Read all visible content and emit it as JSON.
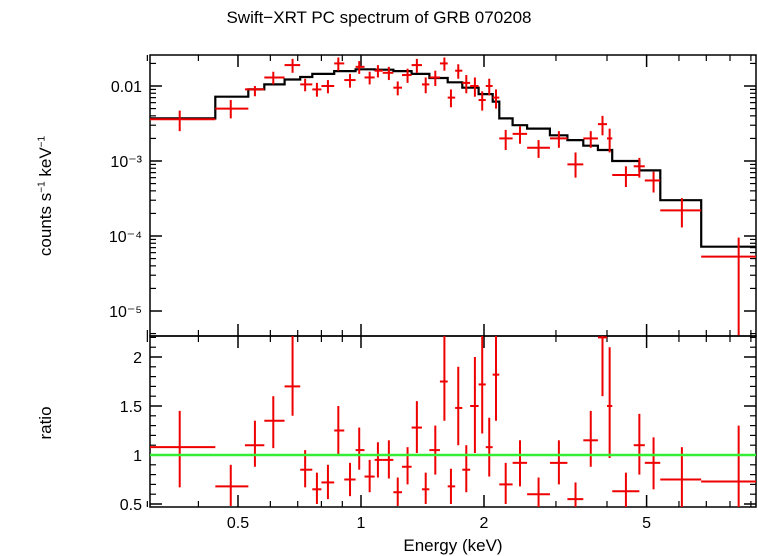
{
  "chart_data": [
    {
      "type": "step-errorbar",
      "panel": "spectrum",
      "title": "Swift−XRT PC spectrum of GRB 070208",
      "xlabel": "Energy (keV)",
      "ylabel": "counts s⁻¹ keV⁻¹",
      "xscale": "log",
      "yscale": "log",
      "xlim": [
        0.3,
        10
      ],
      "ylim": [
        5e-06,
        0.025
      ],
      "y_tick_labels": [
        "0.01",
        "10⁻³",
        "10⁻⁴",
        "10⁻⁵"
      ],
      "data_color": "#ee0000",
      "model_color": "#000000",
      "data": [
        {
          "x": 0.36,
          "xlo": 0.3,
          "xhi": 0.44,
          "y": 0.0036,
          "ylo": 0.0025,
          "yhi": 0.0047
        },
        {
          "x": 0.48,
          "xlo": 0.44,
          "xhi": 0.53,
          "y": 0.005,
          "ylo": 0.0037,
          "yhi": 0.0065
        },
        {
          "x": 0.55,
          "xlo": 0.52,
          "xhi": 0.58,
          "y": 0.009,
          "ylo": 0.0073,
          "yhi": 0.01
        },
        {
          "x": 0.61,
          "xlo": 0.58,
          "xhi": 0.65,
          "y": 0.013,
          "ylo": 0.0105,
          "yhi": 0.0155
        },
        {
          "x": 0.68,
          "xlo": 0.65,
          "xhi": 0.71,
          "y": 0.019,
          "ylo": 0.015,
          "yhi": 0.023
        },
        {
          "x": 0.73,
          "xlo": 0.71,
          "xhi": 0.76,
          "y": 0.0105,
          "ylo": 0.0085,
          "yhi": 0.0125
        },
        {
          "x": 0.78,
          "xlo": 0.76,
          "xhi": 0.8,
          "y": 0.009,
          "ylo": 0.0072,
          "yhi": 0.011
        },
        {
          "x": 0.83,
          "xlo": 0.8,
          "xhi": 0.86,
          "y": 0.01,
          "ylo": 0.008,
          "yhi": 0.012
        },
        {
          "x": 0.88,
          "xlo": 0.86,
          "xhi": 0.91,
          "y": 0.02,
          "ylo": 0.016,
          "yhi": 0.024
        },
        {
          "x": 0.94,
          "xlo": 0.91,
          "xhi": 0.97,
          "y": 0.012,
          "ylo": 0.0095,
          "yhi": 0.0145
        },
        {
          "x": 0.99,
          "xlo": 0.97,
          "xhi": 1.02,
          "y": 0.018,
          "ylo": 0.0145,
          "yhi": 0.0215
        },
        {
          "x": 1.05,
          "xlo": 1.02,
          "xhi": 1.08,
          "y": 0.013,
          "ylo": 0.0105,
          "yhi": 0.0155
        },
        {
          "x": 1.1,
          "xlo": 1.08,
          "xhi": 1.13,
          "y": 0.016,
          "ylo": 0.013,
          "yhi": 0.019
        },
        {
          "x": 1.17,
          "xlo": 1.13,
          "xhi": 1.2,
          "y": 0.015,
          "ylo": 0.012,
          "yhi": 0.018
        },
        {
          "x": 1.23,
          "xlo": 1.2,
          "xhi": 1.26,
          "y": 0.0095,
          "ylo": 0.0075,
          "yhi": 0.0115
        },
        {
          "x": 1.3,
          "xlo": 1.26,
          "xhi": 1.33,
          "y": 0.014,
          "ylo": 0.011,
          "yhi": 0.017
        },
        {
          "x": 1.37,
          "xlo": 1.33,
          "xhi": 1.41,
          "y": 0.019,
          "ylo": 0.015,
          "yhi": 0.023
        },
        {
          "x": 1.44,
          "xlo": 1.41,
          "xhi": 1.47,
          "y": 0.0105,
          "ylo": 0.008,
          "yhi": 0.013
        },
        {
          "x": 1.52,
          "xlo": 1.47,
          "xhi": 1.56,
          "y": 0.013,
          "ylo": 0.01,
          "yhi": 0.016
        },
        {
          "x": 1.6,
          "xlo": 1.56,
          "xhi": 1.63,
          "y": 0.02,
          "ylo": 0.016,
          "yhi": 0.024
        },
        {
          "x": 1.66,
          "xlo": 1.63,
          "xhi": 1.7,
          "y": 0.007,
          "ylo": 0.0052,
          "yhi": 0.009
        },
        {
          "x": 1.73,
          "xlo": 1.7,
          "xhi": 1.77,
          "y": 0.016,
          "ylo": 0.0125,
          "yhi": 0.0195
        },
        {
          "x": 1.81,
          "xlo": 1.77,
          "xhi": 1.85,
          "y": 0.011,
          "ylo": 0.008,
          "yhi": 0.014
        },
        {
          "x": 1.9,
          "xlo": 1.85,
          "xhi": 1.94,
          "y": 0.01,
          "ylo": 0.0072,
          "yhi": 0.013
        },
        {
          "x": 1.98,
          "xlo": 1.94,
          "xhi": 2.02,
          "y": 0.0065,
          "ylo": 0.0047,
          "yhi": 0.0085
        },
        {
          "x": 2.06,
          "xlo": 2.02,
          "xhi": 2.1,
          "y": 0.01,
          "ylo": 0.0075,
          "yhi": 0.0125
        },
        {
          "x": 2.14,
          "xlo": 2.1,
          "xhi": 2.18,
          "y": 0.007,
          "ylo": 0.005,
          "yhi": 0.009
        },
        {
          "x": 2.26,
          "xlo": 2.18,
          "xhi": 2.35,
          "y": 0.002,
          "ylo": 0.0014,
          "yhi": 0.0026
        },
        {
          "x": 2.45,
          "xlo": 2.35,
          "xhi": 2.55,
          "y": 0.0023,
          "ylo": 0.0017,
          "yhi": 0.0029
        },
        {
          "x": 2.72,
          "xlo": 2.55,
          "xhi": 2.9,
          "y": 0.0015,
          "ylo": 0.0011,
          "yhi": 0.0019
        },
        {
          "x": 3.05,
          "xlo": 2.9,
          "xhi": 3.2,
          "y": 0.002,
          "ylo": 0.0015,
          "yhi": 0.0025
        },
        {
          "x": 3.35,
          "xlo": 3.2,
          "xhi": 3.5,
          "y": 0.0009,
          "ylo": 0.0006,
          "yhi": 0.0013
        },
        {
          "x": 3.65,
          "xlo": 3.5,
          "xhi": 3.8,
          "y": 0.002,
          "ylo": 0.0015,
          "yhi": 0.0025
        },
        {
          "x": 3.9,
          "xlo": 3.8,
          "xhi": 4.0,
          "y": 0.0031,
          "ylo": 0.0022,
          "yhi": 0.004
        },
        {
          "x": 4.06,
          "xlo": 4.0,
          "xhi": 4.12,
          "y": 0.002,
          "ylo": 0.0013,
          "yhi": 0.0027
        },
        {
          "x": 4.45,
          "xlo": 4.12,
          "xhi": 4.8,
          "y": 0.00065,
          "ylo": 0.00045,
          "yhi": 0.00085
        },
        {
          "x": 4.8,
          "xlo": 4.65,
          "xhi": 4.95,
          "y": 0.00085,
          "ylo": 0.0006,
          "yhi": 0.0011
        },
        {
          "x": 5.2,
          "xlo": 4.95,
          "xhi": 5.4,
          "y": 0.00055,
          "ylo": 0.00038,
          "yhi": 0.00072
        },
        {
          "x": 6.1,
          "xlo": 5.4,
          "xhi": 6.8,
          "y": 0.00022,
          "ylo": 0.00013,
          "yhi": 0.00032
        },
        {
          "x": 8.4,
          "xlo": 6.8,
          "xhi": 10.0,
          "y": 5.3e-05,
          "ylo": 4e-06,
          "yhi": 9.5e-05
        }
      ],
      "model_steps": [
        {
          "xlo": 0.3,
          "xhi": 0.44,
          "y": 0.0037
        },
        {
          "xlo": 0.44,
          "xhi": 0.53,
          "y": 0.0072
        },
        {
          "xlo": 0.53,
          "xhi": 0.58,
          "y": 0.009
        },
        {
          "xlo": 0.58,
          "xhi": 0.65,
          "y": 0.0105
        },
        {
          "xlo": 0.65,
          "xhi": 0.71,
          "y": 0.0122
        },
        {
          "xlo": 0.71,
          "xhi": 0.76,
          "y": 0.0132
        },
        {
          "xlo": 0.76,
          "xhi": 0.86,
          "y": 0.0145
        },
        {
          "xlo": 0.86,
          "xhi": 0.97,
          "y": 0.0158
        },
        {
          "xlo": 0.97,
          "xhi": 1.08,
          "y": 0.0167
        },
        {
          "xlo": 1.08,
          "xhi": 1.2,
          "y": 0.0165
        },
        {
          "xlo": 1.2,
          "xhi": 1.33,
          "y": 0.0158
        },
        {
          "xlo": 1.33,
          "xhi": 1.47,
          "y": 0.0145
        },
        {
          "xlo": 1.47,
          "xhi": 1.63,
          "y": 0.0128
        },
        {
          "xlo": 1.63,
          "xhi": 1.77,
          "y": 0.0112
        },
        {
          "xlo": 1.77,
          "xhi": 1.94,
          "y": 0.0095
        },
        {
          "xlo": 1.94,
          "xhi": 2.1,
          "y": 0.0078
        },
        {
          "xlo": 2.1,
          "xhi": 2.18,
          "y": 0.0062
        },
        {
          "xlo": 2.18,
          "xhi": 2.35,
          "y": 0.0037
        },
        {
          "xlo": 2.35,
          "xhi": 2.55,
          "y": 0.003
        },
        {
          "xlo": 2.55,
          "xhi": 2.9,
          "y": 0.0027
        },
        {
          "xlo": 2.9,
          "xhi": 3.2,
          "y": 0.0022
        },
        {
          "xlo": 3.2,
          "xhi": 3.5,
          "y": 0.0019
        },
        {
          "xlo": 3.5,
          "xhi": 3.8,
          "y": 0.0016
        },
        {
          "xlo": 3.8,
          "xhi": 4.12,
          "y": 0.0014
        },
        {
          "xlo": 4.12,
          "xhi": 4.8,
          "y": 0.001
        },
        {
          "xlo": 4.8,
          "xhi": 5.4,
          "y": 0.00075
        },
        {
          "xlo": 5.4,
          "xhi": 6.8,
          "y": 0.0003
        },
        {
          "xlo": 6.8,
          "xhi": 10.0,
          "y": 7.2e-05
        }
      ]
    },
    {
      "type": "ratio-errorbar",
      "panel": "ratio",
      "xlabel": "Energy (keV)",
      "ylabel": "ratio",
      "xscale": "log",
      "xlim": [
        0.3,
        10
      ],
      "ylim": [
        0.5,
        2.25
      ],
      "x_tick_labels": [
        "0.5",
        "1",
        "2",
        "5"
      ],
      "y_tick_labels": [
        "0.5",
        "1",
        "1.5",
        "2"
      ],
      "reference_line": {
        "y": 1,
        "color": "#33ee33"
      },
      "data_color": "#ee0000",
      "data": [
        {
          "x": 0.36,
          "xlo": 0.3,
          "xhi": 0.44,
          "y": 1.08,
          "ylo": 0.67,
          "yhi": 1.45
        },
        {
          "x": 0.48,
          "xlo": 0.44,
          "xhi": 0.53,
          "y": 0.68,
          "ylo": 0.48,
          "yhi": 0.9
        },
        {
          "x": 0.55,
          "xlo": 0.52,
          "xhi": 0.58,
          "y": 1.1,
          "ylo": 0.88,
          "yhi": 1.35
        },
        {
          "x": 0.61,
          "xlo": 0.58,
          "xhi": 0.65,
          "y": 1.35,
          "ylo": 1.07,
          "yhi": 1.6
        },
        {
          "x": 0.68,
          "xlo": 0.65,
          "xhi": 0.71,
          "y": 1.7,
          "ylo": 1.4,
          "yhi": 2.22
        },
        {
          "x": 0.73,
          "xlo": 0.71,
          "xhi": 0.76,
          "y": 0.85,
          "ylo": 0.67,
          "yhi": 1.05
        },
        {
          "x": 0.78,
          "xlo": 0.76,
          "xhi": 0.8,
          "y": 0.65,
          "ylo": 0.5,
          "yhi": 0.82
        },
        {
          "x": 0.83,
          "xlo": 0.8,
          "xhi": 0.86,
          "y": 0.72,
          "ylo": 0.55,
          "yhi": 0.9
        },
        {
          "x": 0.88,
          "xlo": 0.86,
          "xhi": 0.91,
          "y": 1.25,
          "ylo": 1.0,
          "yhi": 1.5
        },
        {
          "x": 0.94,
          "xlo": 0.91,
          "xhi": 0.97,
          "y": 0.75,
          "ylo": 0.58,
          "yhi": 0.92
        },
        {
          "x": 0.99,
          "xlo": 0.97,
          "xhi": 1.02,
          "y": 1.05,
          "ylo": 0.85,
          "yhi": 1.28
        },
        {
          "x": 1.05,
          "xlo": 1.02,
          "xhi": 1.08,
          "y": 0.78,
          "ylo": 0.62,
          "yhi": 0.95
        },
        {
          "x": 1.1,
          "xlo": 1.08,
          "xhi": 1.13,
          "y": 0.95,
          "ylo": 0.77,
          "yhi": 1.13
        },
        {
          "x": 1.17,
          "xlo": 1.13,
          "xhi": 1.2,
          "y": 0.95,
          "ylo": 0.76,
          "yhi": 1.15
        },
        {
          "x": 1.23,
          "xlo": 1.2,
          "xhi": 1.26,
          "y": 0.62,
          "ylo": 0.48,
          "yhi": 0.77
        },
        {
          "x": 1.3,
          "xlo": 1.26,
          "xhi": 1.33,
          "y": 0.88,
          "ylo": 0.7,
          "yhi": 1.08
        },
        {
          "x": 1.37,
          "xlo": 1.33,
          "xhi": 1.41,
          "y": 1.28,
          "ylo": 1.02,
          "yhi": 1.55
        },
        {
          "x": 1.44,
          "xlo": 1.41,
          "xhi": 1.47,
          "y": 0.65,
          "ylo": 0.5,
          "yhi": 0.82
        },
        {
          "x": 1.52,
          "xlo": 1.47,
          "xhi": 1.56,
          "y": 1.05,
          "ylo": 0.8,
          "yhi": 1.3
        },
        {
          "x": 1.6,
          "xlo": 1.56,
          "xhi": 1.63,
          "y": 1.75,
          "ylo": 1.35,
          "yhi": 2.25
        },
        {
          "x": 1.66,
          "xlo": 1.63,
          "xhi": 1.7,
          "y": 0.68,
          "ylo": 0.5,
          "yhi": 0.86
        },
        {
          "x": 1.73,
          "xlo": 1.7,
          "xhi": 1.77,
          "y": 1.48,
          "ylo": 1.1,
          "yhi": 1.9
        },
        {
          "x": 1.81,
          "xlo": 1.77,
          "xhi": 1.85,
          "y": 0.85,
          "ylo": 0.62,
          "yhi": 1.1
        },
        {
          "x": 1.9,
          "xlo": 1.85,
          "xhi": 1.94,
          "y": 1.5,
          "ylo": 1.02,
          "yhi": 2.0
        },
        {
          "x": 1.98,
          "xlo": 1.94,
          "xhi": 2.02,
          "y": 1.72,
          "ylo": 1.22,
          "yhi": 2.25
        },
        {
          "x": 2.06,
          "xlo": 2.02,
          "xhi": 2.1,
          "y": 1.08,
          "ylo": 0.78,
          "yhi": 1.38
        },
        {
          "x": 2.14,
          "xlo": 2.1,
          "xhi": 2.18,
          "y": 1.82,
          "ylo": 1.35,
          "yhi": 2.25
        },
        {
          "x": 2.26,
          "xlo": 2.18,
          "xhi": 2.35,
          "y": 0.7,
          "ylo": 0.5,
          "yhi": 0.92
        },
        {
          "x": 2.45,
          "xlo": 2.35,
          "xhi": 2.55,
          "y": 0.92,
          "ylo": 0.68,
          "yhi": 1.15
        },
        {
          "x": 2.72,
          "xlo": 2.55,
          "xhi": 2.9,
          "y": 0.6,
          "ylo": 0.45,
          "yhi": 0.77
        },
        {
          "x": 3.05,
          "xlo": 2.9,
          "xhi": 3.2,
          "y": 0.92,
          "ylo": 0.7,
          "yhi": 1.15
        },
        {
          "x": 3.35,
          "xlo": 3.2,
          "xhi": 3.5,
          "y": 0.55,
          "ylo": 0.4,
          "yhi": 0.72
        },
        {
          "x": 3.65,
          "xlo": 3.5,
          "xhi": 3.8,
          "y": 1.15,
          "ylo": 0.88,
          "yhi": 1.45
        },
        {
          "x": 3.9,
          "xlo": 3.8,
          "xhi": 4.0,
          "y": 2.2,
          "ylo": 1.6,
          "yhi": 2.25
        },
        {
          "x": 4.06,
          "xlo": 4.0,
          "xhi": 4.12,
          "y": 1.5,
          "ylo": 0.97,
          "yhi": 2.1
        },
        {
          "x": 4.45,
          "xlo": 4.12,
          "xhi": 4.8,
          "y": 0.63,
          "ylo": 0.45,
          "yhi": 0.82
        },
        {
          "x": 4.8,
          "xlo": 4.65,
          "xhi": 4.95,
          "y": 1.1,
          "ylo": 0.8,
          "yhi": 1.42
        },
        {
          "x": 5.2,
          "xlo": 4.95,
          "xhi": 5.4,
          "y": 0.92,
          "ylo": 0.65,
          "yhi": 1.18
        },
        {
          "x": 6.1,
          "xlo": 5.4,
          "xhi": 6.8,
          "y": 0.75,
          "ylo": 0.45,
          "yhi": 1.08
        },
        {
          "x": 8.4,
          "xlo": 6.8,
          "xhi": 10.0,
          "y": 0.73,
          "ylo": 0.4,
          "yhi": 1.3
        }
      ]
    }
  ],
  "labels": {
    "title": "Swift−XRT PC spectrum of GRB 070208",
    "xlabel": "Energy (keV)",
    "ylabel_top_main": "counts s",
    "ylabel_top_exp1": "−1",
    "ylabel_top_mid": " keV",
    "ylabel_top_exp2": "−1",
    "ylabel_bottom": "ratio"
  }
}
